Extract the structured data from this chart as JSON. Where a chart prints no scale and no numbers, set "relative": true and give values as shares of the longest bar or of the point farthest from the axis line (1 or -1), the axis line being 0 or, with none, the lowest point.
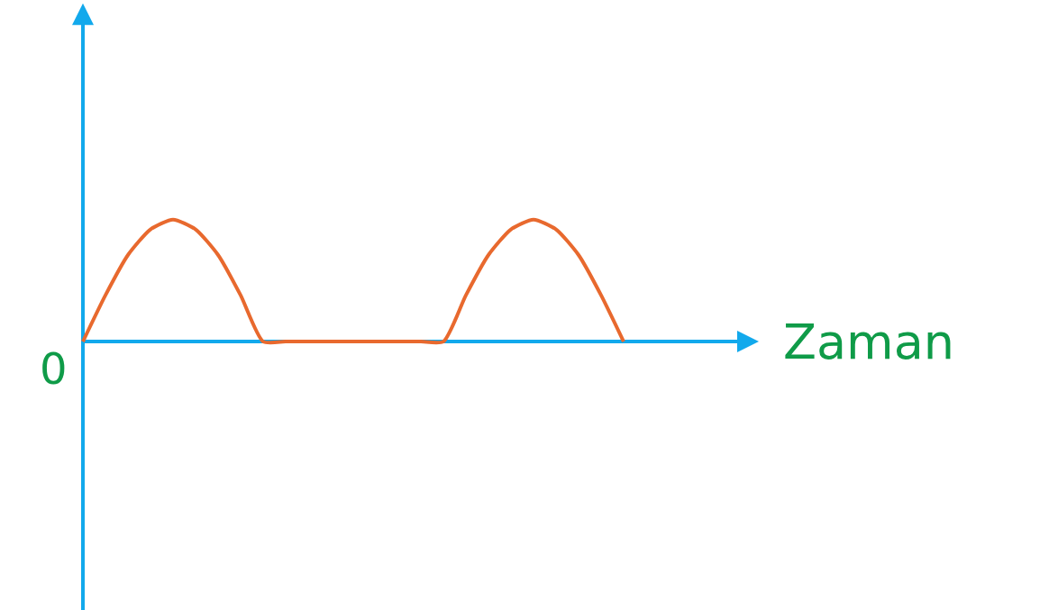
{
  "chart_data": {
    "type": "line",
    "relative": true,
    "xlabel": "Zaman",
    "annotations": [
      "0"
    ],
    "color": "#e8692e",
    "categories": [
      null,
      null,
      null,
      null,
      null,
      null,
      null,
      null,
      null,
      null,
      null,
      null,
      null,
      null,
      null,
      null,
      null,
      null,
      null,
      null,
      null,
      null,
      null,
      null,
      null
    ],
    "values": [
      0,
      0.38,
      0.71,
      0.92,
      1,
      0.92,
      0.71,
      0.38,
      0,
      0,
      0,
      0,
      0,
      0,
      0,
      0,
      0,
      0.38,
      0.71,
      0.92,
      1,
      0.92,
      0.71,
      0.38,
      0
    ],
    "legend": false,
    "marker": "none",
    "line_style": "solid"
  }
}
